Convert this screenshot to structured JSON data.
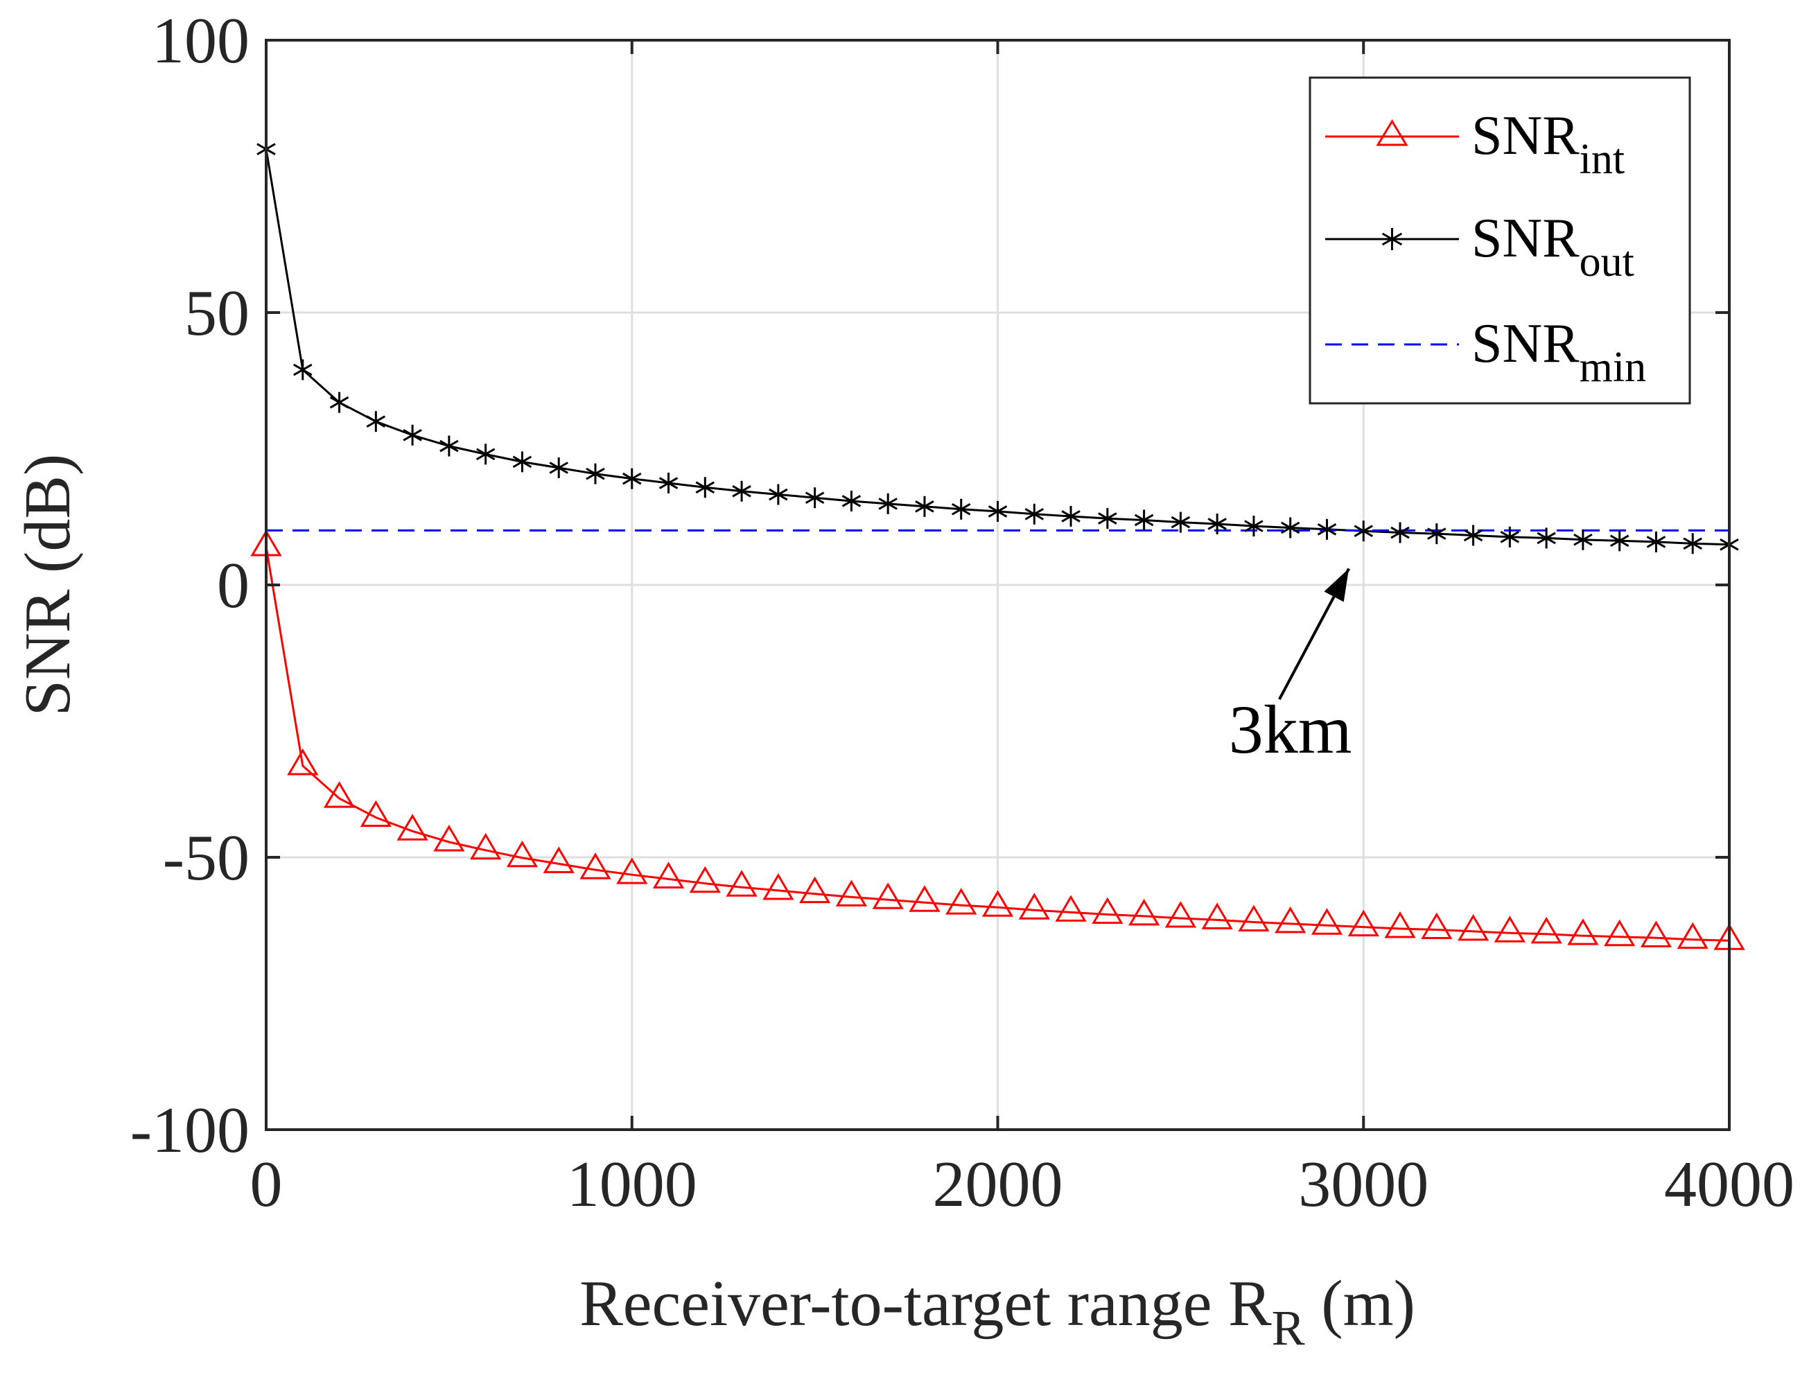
{
  "chart_data": {
    "type": "line",
    "title": "",
    "xlabel": "Receiver-to-target range R",
    "xlabel_sub": "R",
    "xlabel_suffix": " (m)",
    "ylabel": "SNR (dB)",
    "xlim": [
      0,
      4000
    ],
    "ylim": [
      -100,
      100
    ],
    "xticks": [
      0,
      1000,
      2000,
      3000,
      4000
    ],
    "yticks": [
      100,
      50,
      0,
      -50,
      -100
    ],
    "xtick_labels": [
      "0",
      "1000",
      "2000",
      "3000",
      "4000"
    ],
    "ytick_labels": [
      "100",
      "50",
      "0",
      "-50",
      "-100"
    ],
    "grid": true,
    "legend_position": "top-right",
    "x": [
      0,
      100,
      200,
      300,
      400,
      500,
      600,
      700,
      800,
      900,
      1000,
      1100,
      1200,
      1300,
      1400,
      1500,
      1600,
      1700,
      1800,
      1900,
      2000,
      2100,
      2200,
      2300,
      2400,
      2500,
      2600,
      2700,
      2800,
      2900,
      3000,
      3100,
      3200,
      3300,
      3400,
      3500,
      3600,
      3700,
      3800,
      3900,
      4000
    ],
    "series": [
      {
        "name": "SNR",
        "name_sub": "int",
        "color": "#ff0000",
        "marker": "triangle",
        "line_style": "solid",
        "values": [
          7,
          -33.2,
          -39.2,
          -42.7,
          -45.2,
          -47.2,
          -48.7,
          -50.1,
          -51.2,
          -52.3,
          -53.2,
          -54.0,
          -54.8,
          -55.5,
          -56.1,
          -56.7,
          -57.3,
          -57.8,
          -58.3,
          -58.8,
          -59.2,
          -59.7,
          -60.1,
          -60.5,
          -60.8,
          -61.2,
          -61.5,
          -61.9,
          -62.2,
          -62.5,
          -62.8,
          -63.1,
          -63.3,
          -63.6,
          -63.9,
          -64.1,
          -64.4,
          -64.6,
          -64.8,
          -65.1,
          -65.3
        ]
      },
      {
        "name": "SNR",
        "name_sub": "out",
        "color": "#000000",
        "marker": "asterisk",
        "line_style": "solid",
        "values": [
          80,
          39.5,
          33.5,
          30.0,
          27.5,
          25.5,
          24.0,
          22.6,
          21.5,
          20.4,
          19.5,
          18.7,
          17.9,
          17.2,
          16.6,
          16.0,
          15.4,
          14.9,
          14.4,
          13.9,
          13.5,
          13.0,
          12.6,
          12.2,
          11.9,
          11.5,
          11.2,
          10.8,
          10.5,
          10.2,
          9.9,
          9.6,
          9.4,
          9.1,
          8.8,
          8.6,
          8.3,
          8.1,
          7.9,
          7.6,
          7.4
        ]
      },
      {
        "name": "SNR",
        "name_sub": "min",
        "color": "#0000ff",
        "marker": "none",
        "line_style": "dashed",
        "values": [
          10,
          10,
          10,
          10,
          10,
          10,
          10,
          10,
          10,
          10,
          10,
          10,
          10,
          10,
          10,
          10,
          10,
          10,
          10,
          10,
          10,
          10,
          10,
          10,
          10,
          10,
          10,
          10,
          10,
          10,
          10,
          10,
          10,
          10,
          10,
          10,
          10,
          10,
          10,
          10,
          10
        ]
      }
    ],
    "annotations": [
      {
        "text": "3km",
        "arrow_x": 2960,
        "arrow_y": 3,
        "text_x": 2800,
        "text_y": -27
      }
    ]
  }
}
